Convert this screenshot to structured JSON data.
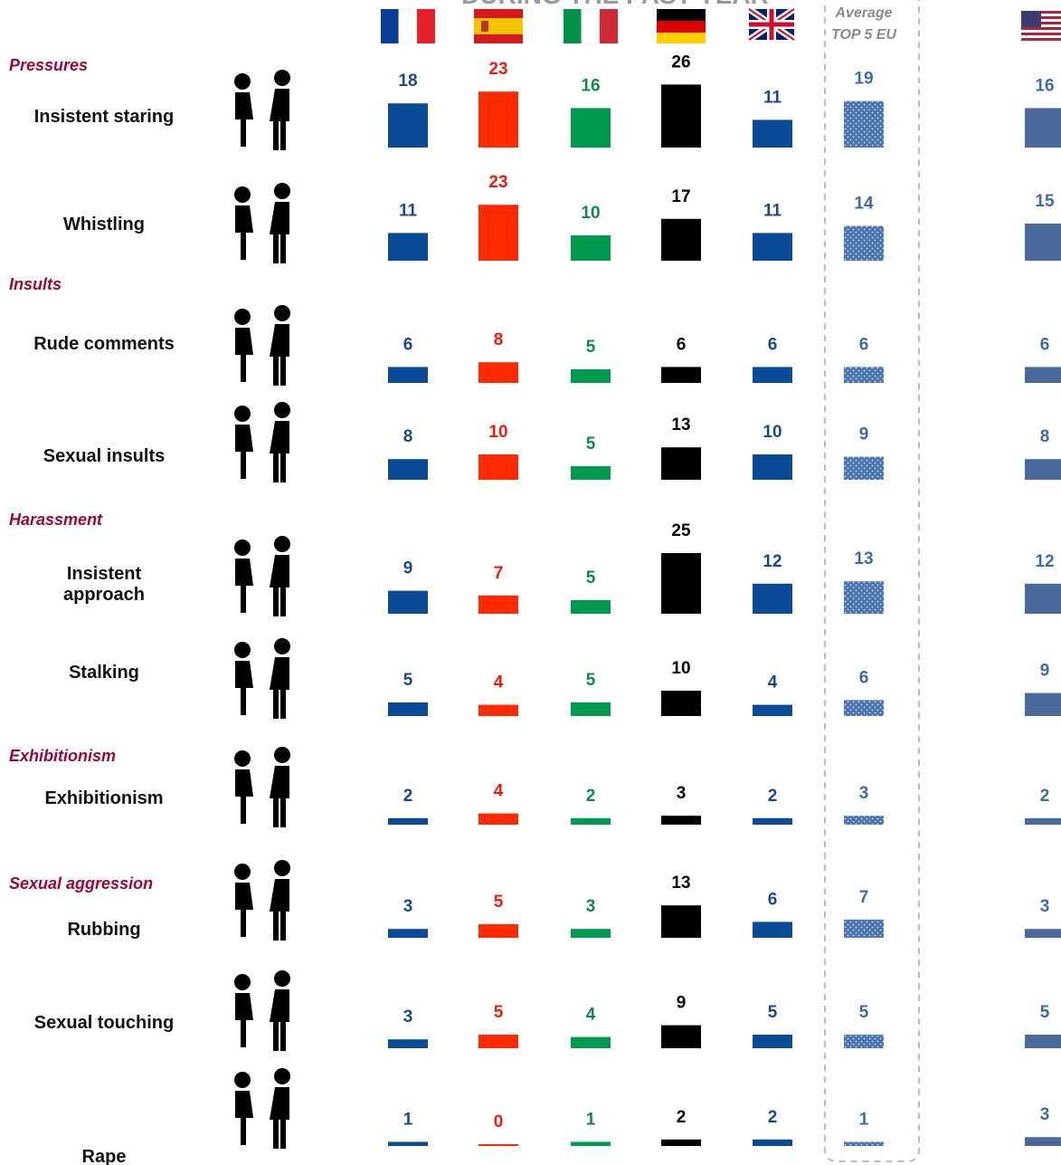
{
  "chart_data": {
    "type": "bar-grid",
    "title": "DURING THE PAST YEAR",
    "average_label": [
      "Average",
      "TOP 5 EU"
    ],
    "categories": [
      "Insistent staring",
      "Whistling",
      "Rude comments",
      "Sexual insults",
      "Insistent approach",
      "Stalking",
      "Exhibitionism",
      "Rubbing",
      "Sexual touching",
      "Rape"
    ],
    "group_labels": [
      "Pressures",
      null,
      "Insults",
      null,
      "Harassment",
      null,
      "Exhibitionism",
      "Sexual aggression",
      null,
      null
    ],
    "series": [
      {
        "color": "#0b4a97",
        "label_color": "#1b4a8c",
        "values": [
          18,
          11,
          6,
          8,
          9,
          5,
          2,
          3,
          3,
          1
        ]
      },
      {
        "color": "#ff2a00",
        "label_color": "#ee1c0c",
        "values": [
          23,
          23,
          8,
          10,
          7,
          4,
          4,
          5,
          5,
          0
        ]
      },
      {
        "color": "#009a4e",
        "label_color": "#0d8a47",
        "values": [
          16,
          10,
          5,
          5,
          5,
          5,
          2,
          3,
          4,
          1
        ]
      },
      {
        "color": "#000000",
        "label_color": "#000000",
        "values": [
          26,
          17,
          6,
          13,
          25,
          10,
          3,
          13,
          9,
          2
        ]
      },
      {
        "color": "#0b4a97",
        "label_color": "#1b4a8c",
        "values": [
          11,
          11,
          6,
          10,
          12,
          4,
          2,
          6,
          5,
          2
        ]
      },
      {
        "color": "#4a74b0",
        "label_color": "#3e6ba8",
        "pattern": "dots",
        "values": [
          19,
          14,
          6,
          9,
          13,
          6,
          3,
          7,
          5,
          1
        ]
      },
      {
        "color": "#4a6a9c",
        "label_color": "#3e6ba8",
        "values": [
          16,
          15,
          6,
          8,
          12,
          9,
          2,
          3,
          5,
          3
        ]
      }
    ]
  }
}
